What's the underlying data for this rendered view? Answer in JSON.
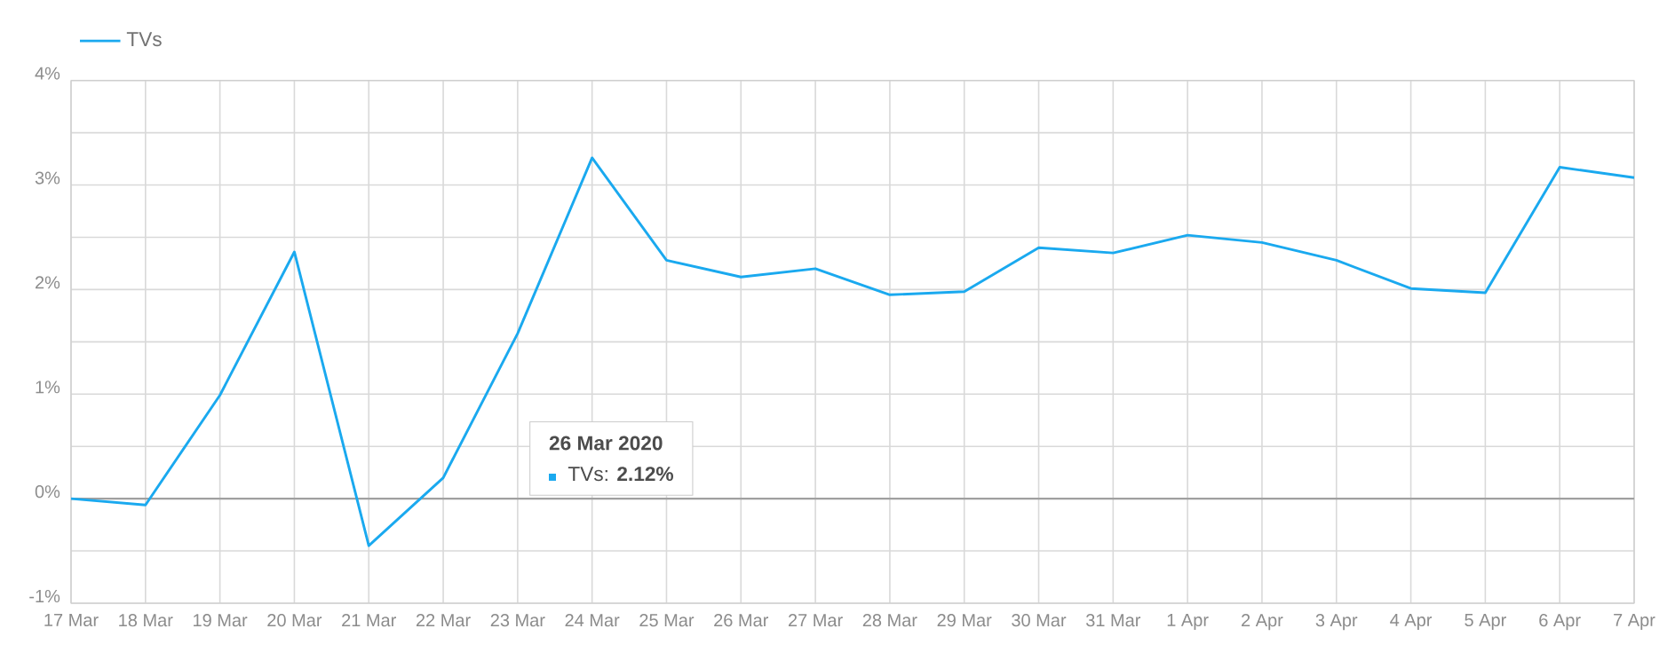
{
  "chart_data": {
    "type": "line",
    "categories": [
      "17 Mar",
      "18 Mar",
      "19 Mar",
      "20 Mar",
      "21 Mar",
      "22 Mar",
      "23 Mar",
      "24 Mar",
      "25 Mar",
      "26 Mar",
      "27 Mar",
      "28 Mar",
      "29 Mar",
      "30 Mar",
      "31 Mar",
      "1 Apr",
      "2 Apr",
      "3 Apr",
      "4 Apr",
      "5 Apr",
      "6 Apr",
      "7 Apr"
    ],
    "series": [
      {
        "name": "TVs",
        "color": "#1aa9ef",
        "values": [
          0,
          -0.06,
          0.99,
          2.36,
          -0.45,
          0.2,
          1.58,
          3.26,
          2.28,
          2.12,
          2.2,
          1.95,
          1.98,
          2.4,
          2.35,
          2.52,
          2.45,
          2.28,
          2.01,
          1.97,
          3.17,
          3.07
        ]
      }
    ],
    "ylim": [
      -1,
      4
    ],
    "yticks": [
      {
        "value": -1,
        "label": "-1%"
      },
      {
        "value": -0.5,
        "label": null
      },
      {
        "value": 0,
        "label": "0%"
      },
      {
        "value": 0.5,
        "label": null
      },
      {
        "value": 1,
        "label": "1%"
      },
      {
        "value": 1.5,
        "label": null
      },
      {
        "value": 2,
        "label": "2%"
      },
      {
        "value": 2.5,
        "label": null
      },
      {
        "value": 3,
        "label": "3%"
      },
      {
        "value": 3.5,
        "label": null
      },
      {
        "value": 4,
        "label": "4%"
      }
    ],
    "ref_lines": [
      {
        "axis": "y",
        "value": 0,
        "color": "#a0a0a0"
      }
    ],
    "annotations": [
      "26 Mar 2020",
      "TVs: **2.12%**"
    ],
    "grid": true,
    "legend": "top left",
    "marker": "none",
    "line_style": "solid"
  }
}
